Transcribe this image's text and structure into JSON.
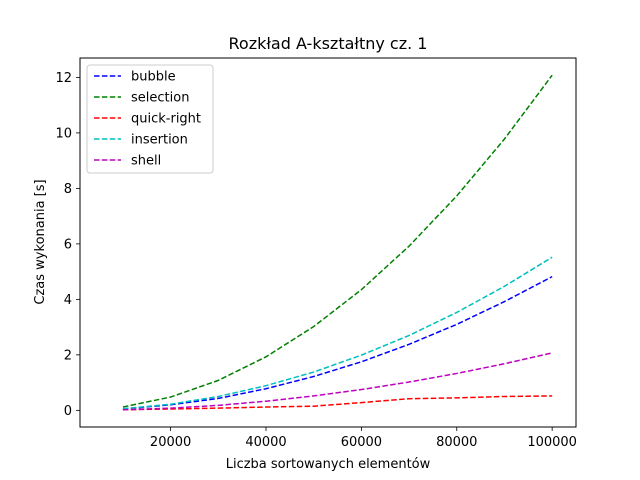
{
  "chart_data": {
    "type": "line",
    "title": "Rozkład A-kształtny cz. 1",
    "xlabel": "Liczba sortowanych elementów",
    "ylabel": "Czas wykonania [s]",
    "xlim": [
      1000,
      105000
    ],
    "ylim": [
      -0.6,
      12.7
    ],
    "x": [
      10000,
      20000,
      30000,
      40000,
      50000,
      60000,
      70000,
      80000,
      90000,
      100000
    ],
    "xticks": [
      20000,
      40000,
      60000,
      80000,
      100000
    ],
    "xtick_labels": [
      "20000",
      "40000",
      "60000",
      "80000",
      "100000"
    ],
    "yticks": [
      0,
      2,
      4,
      6,
      8,
      10,
      12
    ],
    "ytick_labels": [
      "0",
      "2",
      "4",
      "6",
      "8",
      "10",
      "12"
    ],
    "legend_position": "top-left",
    "series": [
      {
        "name": "bubble",
        "color": "#0000ff",
        "values": [
          0.05,
          0.2,
          0.43,
          0.78,
          1.22,
          1.75,
          2.38,
          3.1,
          3.92,
          4.82
        ]
      },
      {
        "name": "selection",
        "color": "#008000",
        "values": [
          0.12,
          0.48,
          1.08,
          1.93,
          3.02,
          4.35,
          5.92,
          7.73,
          9.78,
          12.08
        ]
      },
      {
        "name": "quick-right",
        "color": "#ff0000",
        "values": [
          0.02,
          0.05,
          0.08,
          0.12,
          0.15,
          0.28,
          0.42,
          0.45,
          0.5,
          0.52
        ]
      },
      {
        "name": "insertion",
        "color": "#00bfbf",
        "values": [
          0.06,
          0.22,
          0.5,
          0.89,
          1.38,
          1.99,
          2.7,
          3.53,
          4.47,
          5.52
        ]
      },
      {
        "name": "shell",
        "color": "#bf00bf",
        "values": [
          0.02,
          0.08,
          0.18,
          0.33,
          0.52,
          0.75,
          1.02,
          1.33,
          1.68,
          2.07
        ]
      }
    ]
  }
}
